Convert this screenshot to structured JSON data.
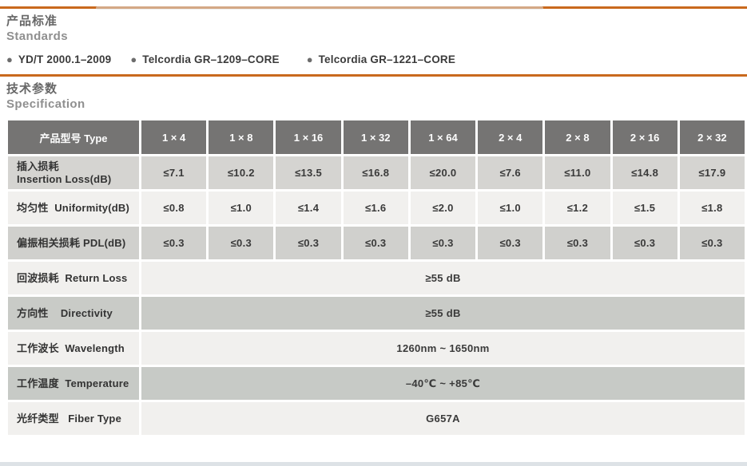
{
  "page": {
    "accent_rule_color": "#c9691d",
    "bottom_strip_color": "#dde2e6",
    "bullet_color": "#6d6d6d"
  },
  "standards": {
    "title_zh": "产品标准",
    "title_en": "Standards",
    "items": [
      {
        "label": "YD/T 2000.1–2009"
      },
      {
        "label": "Telcordia GR–1209–CORE"
      },
      {
        "label": "Telcordia GR–1221–CORE"
      }
    ]
  },
  "specification": {
    "title_zh": "技术参数",
    "title_en": "Specification"
  },
  "table": {
    "header": {
      "label": "产品型号 Type",
      "columns": [
        "1 × 4",
        "1 × 8",
        "1 × 16",
        "1 × 32",
        "1 × 64",
        "2 × 4",
        "2 × 8",
        "2 × 16",
        "2 × 32"
      ],
      "bg": "#757473",
      "text_color": "#fdfdfd"
    },
    "rows": [
      {
        "label": "插入损耗\nInsertion Loss(dB)",
        "bg": "#d5d4d1",
        "values": [
          "≤7.1",
          "≤10.2",
          "≤13.5",
          "≤16.8",
          "≤20.0",
          "≤7.6",
          "≤11.0",
          "≤14.8",
          "≤17.9"
        ]
      },
      {
        "label": "均匀性  Uniformity(dB)",
        "bg": "#f1f0ee",
        "values": [
          "≤0.8",
          "≤1.0",
          "≤1.4",
          "≤1.6",
          "≤2.0",
          "≤1.0",
          "≤1.2",
          "≤1.5",
          "≤1.8"
        ]
      },
      {
        "label": "偏振相关损耗 PDL(dB)",
        "bg": "#d0d0cd",
        "values": [
          "≤0.3",
          "≤0.3",
          "≤0.3",
          "≤0.3",
          "≤0.3",
          "≤0.3",
          "≤0.3",
          "≤0.3",
          "≤0.3"
        ]
      },
      {
        "label": "回波损耗  Return Loss",
        "bg": "#f1f0ee",
        "values": [
          "≥55 dB"
        ]
      },
      {
        "label": "方向性    Directivity",
        "bg": "#c9cbc7",
        "values": [
          "≥55 dB"
        ]
      },
      {
        "label": "工作波长  Wavelength",
        "bg": "#f1f0ee",
        "values": [
          "1260nm ~ 1650nm"
        ]
      },
      {
        "label": "工作温度  Temperature",
        "bg": "#c7cac6",
        "values": [
          "–40℃ ~ +85℃"
        ]
      },
      {
        "label": "光纤类型   Fiber Type",
        "bg": "#f1f0ee",
        "values": [
          "G657A"
        ]
      }
    ]
  }
}
